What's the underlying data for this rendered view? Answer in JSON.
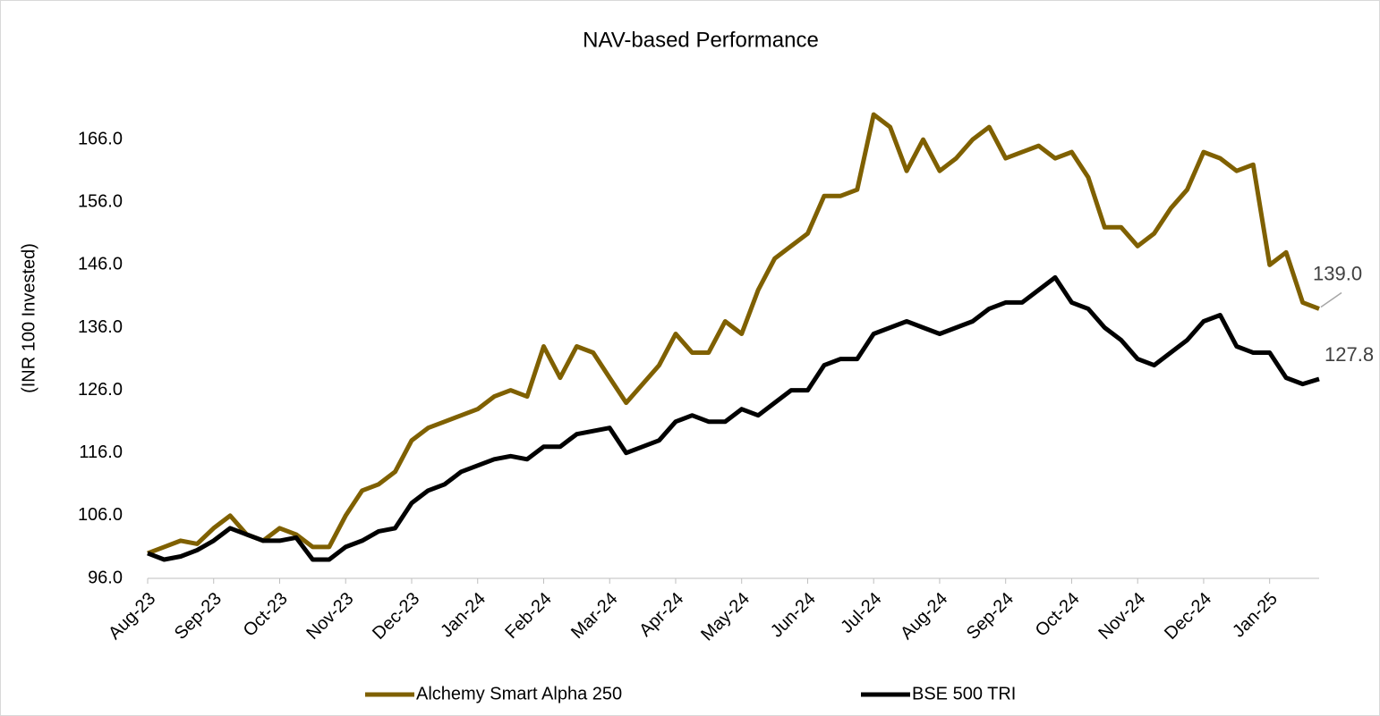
{
  "chart_data": {
    "type": "line",
    "title": "NAV-based Performance",
    "y_label": "(INR 100 Invested)",
    "categories": [
      "Aug-23",
      null,
      null,
      null,
      "Sep-23",
      null,
      null,
      null,
      "Oct-23",
      null,
      null,
      null,
      "Nov-23",
      null,
      null,
      null,
      "Dec-23",
      null,
      null,
      null,
      "Jan-24",
      null,
      null,
      null,
      "Feb-24",
      null,
      null,
      null,
      "Mar-24",
      null,
      null,
      null,
      "Apr-24",
      null,
      null,
      null,
      "May-24",
      null,
      null,
      null,
      "Jun-24",
      null,
      null,
      null,
      "Jul-24",
      null,
      null,
      null,
      "Aug-24",
      null,
      null,
      null,
      "Sep-24",
      null,
      null,
      null,
      "Oct-24",
      null,
      null,
      null,
      "Nov-24",
      null,
      null,
      null,
      "Dec-24",
      null,
      null,
      null,
      "Jan-25",
      null,
      null,
      null
    ],
    "series": [
      {
        "name": "Alchemy Smart Alpha 250",
        "color": "#7f6000",
        "values": [
          100,
          101,
          102,
          101.5,
          104,
          106,
          103,
          102,
          104,
          103,
          101,
          101,
          106,
          110,
          111,
          113,
          118,
          120,
          121,
          122,
          123,
          125,
          126,
          125,
          133,
          128,
          133,
          132,
          128,
          124,
          127,
          130,
          135,
          132,
          132,
          137,
          135,
          142,
          147,
          149,
          151,
          157,
          157,
          158,
          170,
          168,
          161,
          166,
          161,
          163,
          166,
          168,
          163,
          164,
          165,
          163,
          164,
          160,
          152,
          152,
          149,
          151,
          155,
          158,
          164,
          163,
          161,
          162,
          146,
          148,
          140,
          139
        ],
        "value_labels": [
          null,
          null,
          null,
          null,
          null,
          null,
          null,
          null,
          null,
          null,
          null,
          null,
          null,
          null,
          null,
          null,
          null,
          null,
          null,
          null,
          null,
          null,
          null,
          null,
          null,
          null,
          null,
          null,
          null,
          null,
          null,
          null,
          null,
          null,
          null,
          null,
          null,
          null,
          null,
          null,
          null,
          null,
          null,
          null,
          null,
          null,
          null,
          null,
          null,
          null,
          null,
          null,
          null,
          null,
          null,
          null,
          null,
          null,
          null,
          null,
          null,
          null,
          null,
          null,
          null,
          null,
          null,
          null,
          null,
          null,
          null,
          "139.0"
        ]
      },
      {
        "name": "BSE 500 TRI",
        "color": "#000000",
        "values": [
          100,
          99,
          99.5,
          100.5,
          102,
          104,
          103,
          102,
          102,
          102.5,
          99,
          99,
          101,
          102,
          103.5,
          104,
          108,
          110,
          111,
          113,
          114,
          115,
          115.5,
          115,
          117,
          117,
          119,
          119.5,
          120,
          116,
          117,
          118,
          121,
          122,
          121,
          121,
          123,
          122,
          124,
          126,
          126,
          130,
          131,
          131,
          135,
          136,
          137,
          136,
          135,
          136,
          137,
          139,
          140,
          140,
          142,
          144,
          140,
          139,
          136,
          134,
          131,
          130,
          132,
          134,
          137,
          138,
          133,
          132,
          132,
          128,
          127,
          127.8
        ],
        "value_labels": [
          null,
          null,
          null,
          null,
          null,
          null,
          null,
          null,
          null,
          null,
          null,
          null,
          null,
          null,
          null,
          null,
          null,
          null,
          null,
          null,
          null,
          null,
          null,
          null,
          null,
          null,
          null,
          null,
          null,
          null,
          null,
          null,
          null,
          null,
          null,
          null,
          null,
          null,
          null,
          null,
          null,
          null,
          null,
          null,
          null,
          null,
          null,
          null,
          null,
          null,
          null,
          null,
          null,
          null,
          null,
          null,
          null,
          null,
          null,
          null,
          null,
          null,
          null,
          null,
          null,
          null,
          null,
          null,
          null,
          null,
          null,
          "127.8"
        ]
      }
    ],
    "ylim": [
      96,
      174
    ],
    "yticks": [
      {
        "value": 96,
        "label": "96.0"
      },
      {
        "value": 106,
        "label": "106.0"
      },
      {
        "value": 116,
        "label": "116.0"
      },
      {
        "value": 126,
        "label": "126.0"
      },
      {
        "value": 136,
        "label": "136.0"
      },
      {
        "value": 146,
        "label": "146.0"
      },
      {
        "value": 156,
        "label": "156.0"
      },
      {
        "value": 166,
        "label": "166.0"
      }
    ],
    "grid": false,
    "legend": "bottom"
  }
}
